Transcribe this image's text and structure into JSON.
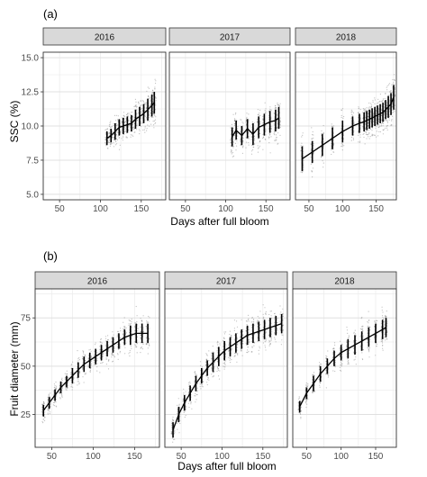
{
  "figure": {
    "panels": [
      {
        "tag": "(a)",
        "ylabel": "SSC (%)",
        "xlabel": "Days after full bloom"
      },
      {
        "tag": "(b)",
        "ylabel": "Fruit diameter (mm)",
        "xlabel": "Days after full bloom"
      }
    ]
  },
  "chart_data": [
    {
      "type": "line",
      "panel_tag": "(a)",
      "xlabel": "Days after full bloom",
      "ylabel": "SSC (%)",
      "facets": [
        "2016",
        "2017",
        "2018"
      ],
      "x_ticks": [
        50,
        100,
        150
      ],
      "y_ticks": [
        "5.0",
        "7.5",
        "10.0",
        "12.5",
        "15.0"
      ],
      "xlim": [
        30,
        180
      ],
      "ylim": [
        4.6,
        15.4
      ],
      "grid": true,
      "series": [
        {
          "facet": "2016",
          "x": [
            108,
            113,
            118,
            123,
            128,
            133,
            138,
            143,
            148,
            153,
            158,
            163,
            166
          ],
          "mean": [
            9.1,
            9.3,
            9.6,
            9.9,
            10.0,
            10.1,
            10.2,
            10.5,
            10.7,
            10.9,
            11.2,
            11.5,
            11.7
          ],
          "sd": [
            0.5,
            0.5,
            0.6,
            0.6,
            0.6,
            0.6,
            0.6,
            0.7,
            0.7,
            0.7,
            0.8,
            0.8,
            0.8
          ]
        },
        {
          "facet": "2017",
          "x": [
            108,
            113,
            120,
            127,
            134,
            141,
            148,
            155,
            162,
            166
          ],
          "mean": [
            9.2,
            9.7,
            9.3,
            9.8,
            9.4,
            9.9,
            10.1,
            10.3,
            10.4,
            10.6
          ],
          "sd": [
            0.7,
            0.7,
            0.7,
            0.7,
            0.8,
            0.8,
            0.8,
            0.8,
            0.8,
            0.8
          ]
        },
        {
          "facet": "2018",
          "x": [
            40,
            55,
            70,
            85,
            100,
            115,
            125,
            132,
            136,
            140,
            144,
            148,
            152,
            156,
            160,
            164,
            168,
            172,
            176
          ],
          "mean": [
            7.6,
            8.1,
            8.6,
            9.1,
            9.6,
            10.0,
            10.2,
            10.3,
            10.4,
            10.5,
            10.6,
            10.7,
            10.8,
            10.9,
            11.0,
            11.2,
            11.4,
            11.6,
            12.1
          ],
          "sd": [
            0.9,
            0.8,
            0.8,
            0.8,
            0.8,
            0.7,
            0.7,
            0.7,
            0.7,
            0.7,
            0.7,
            0.7,
            0.7,
            0.7,
            0.7,
            0.7,
            0.8,
            0.8,
            0.9
          ]
        }
      ]
    },
    {
      "type": "line",
      "panel_tag": "(b)",
      "xlabel": "Days after full bloom",
      "ylabel": "Fruit diameter (mm)",
      "facets": [
        "2016",
        "2017",
        "2018"
      ],
      "x_ticks": [
        50,
        100,
        150
      ],
      "y_ticks": [
        "25",
        "50",
        "75"
      ],
      "xlim": [
        30,
        180
      ],
      "ylim": [
        8,
        90
      ],
      "grid": true,
      "series": [
        {
          "facet": "2016",
          "x": [
            40,
            47,
            54,
            61,
            68,
            75,
            82,
            89,
            96,
            103,
            110,
            117,
            124,
            131,
            138,
            145,
            152,
            159,
            166
          ],
          "mean": [
            27,
            31,
            35,
            39,
            42,
            45,
            48,
            51,
            53,
            55,
            57,
            59,
            61,
            63,
            65,
            66,
            67,
            67,
            67
          ],
          "sd": [
            3,
            3,
            3,
            3,
            3,
            4,
            4,
            4,
            4,
            4,
            4,
            4,
            4,
            4,
            4,
            5,
            5,
            5,
            5
          ]
        },
        {
          "facet": "2017",
          "x": [
            40,
            47,
            54,
            61,
            68,
            75,
            82,
            89,
            96,
            103,
            110,
            117,
            124,
            131,
            138,
            145,
            152,
            159,
            166,
            173
          ],
          "mean": [
            17,
            25,
            31,
            36,
            41,
            45,
            49,
            52,
            55,
            58,
            60,
            62,
            64,
            66,
            67,
            68,
            69,
            70,
            71,
            72
          ],
          "sd": [
            4,
            4,
            4,
            4,
            4,
            4,
            4,
            5,
            5,
            5,
            5,
            5,
            5,
            5,
            5,
            5,
            5,
            5,
            5,
            5
          ]
        },
        {
          "facet": "2018",
          "x": [
            40,
            50,
            60,
            70,
            80,
            90,
            100,
            110,
            120,
            130,
            140,
            150,
            160,
            165
          ],
          "mean": [
            29,
            36,
            41,
            46,
            50,
            54,
            57,
            59,
            61,
            63,
            65,
            67,
            69,
            70
          ],
          "sd": [
            3,
            3,
            4,
            4,
            4,
            4,
            4,
            5,
            5,
            5,
            5,
            5,
            5,
            5
          ]
        }
      ]
    }
  ]
}
